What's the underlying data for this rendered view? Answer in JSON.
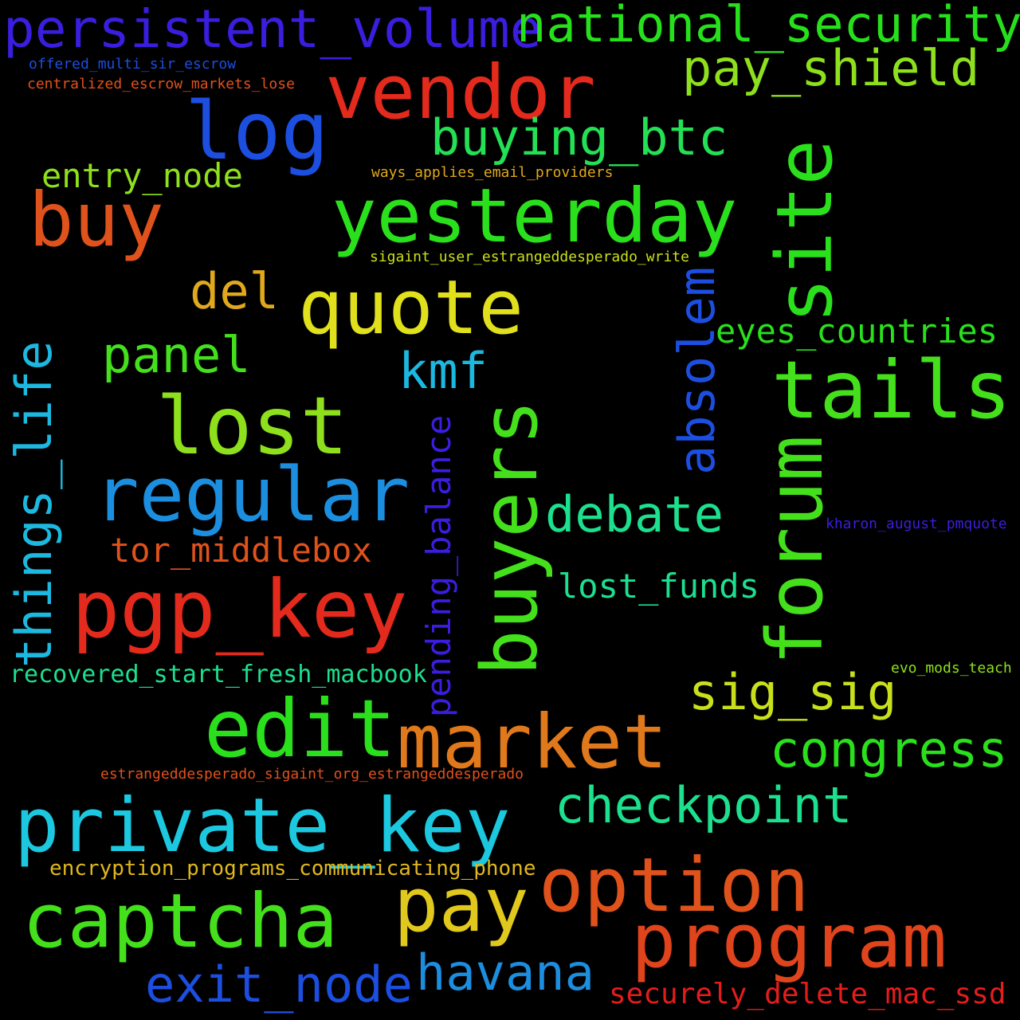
{
  "words": [
    {
      "id": "persistent_volume",
      "text": "persistent_volume",
      "color": "#3a1ee0"
    },
    {
      "id": "national_security",
      "text": "national_security",
      "color": "#27e01c"
    },
    {
      "id": "vendor",
      "text": "vendor",
      "color": "#e42a1c"
    },
    {
      "id": "pay_shield",
      "text": "pay_shield",
      "color": "#8ee01c"
    },
    {
      "id": "offered_multi_sir_escrow",
      "text": "offered_multi_sir_escrow",
      "color": "#1c4ee0"
    },
    {
      "id": "centralized_escrow_markets_lose",
      "text": "centralized_escrow_markets_lose",
      "color": "#e0521c"
    },
    {
      "id": "log",
      "text": "log",
      "color": "#1c4ee0"
    },
    {
      "id": "buying_btc",
      "text": "buying_btc",
      "color": "#24e055"
    },
    {
      "id": "entry_node",
      "text": "entry_node",
      "color": "#8ee01c"
    },
    {
      "id": "ways_applies_email_providers",
      "text": "ways_applies_email_providers",
      "color": "#e0a81c"
    },
    {
      "id": "site",
      "text": "site",
      "color": "#2ae01c"
    },
    {
      "id": "buy",
      "text": "buy",
      "color": "#e0521c"
    },
    {
      "id": "yesterday",
      "text": "yesterday",
      "color": "#2ae01c"
    },
    {
      "id": "sigaint_user_estrangeddesperado_write",
      "text": "sigaint_user_estrangeddesperado_write",
      "color": "#c8e01c"
    },
    {
      "id": "del",
      "text": "del",
      "color": "#e0a81c"
    },
    {
      "id": "quote",
      "text": "quote",
      "color": "#e0e01c"
    },
    {
      "id": "absolem",
      "text": "absolem",
      "color": "#1c4ee0"
    },
    {
      "id": "eyes_countries",
      "text": "eyes_countries",
      "color": "#2ae01c"
    },
    {
      "id": "panel",
      "text": "panel",
      "color": "#44e01c"
    },
    {
      "id": "things_life",
      "text": "things_life",
      "color": "#1cb8e0"
    },
    {
      "id": "kmf",
      "text": "kmf",
      "color": "#1cb8e0"
    },
    {
      "id": "tails",
      "text": "tails",
      "color": "#44e01c"
    },
    {
      "id": "lost",
      "text": "lost",
      "color": "#8ee01c"
    },
    {
      "id": "forum",
      "text": "forum",
      "color": "#44e01c"
    },
    {
      "id": "buyers",
      "text": "buyers",
      "color": "#44e01c"
    },
    {
      "id": "pending_balance",
      "text": "pending_balance",
      "color": "#3a1ee0"
    },
    {
      "id": "regular",
      "text": "regular",
      "color": "#1c8ee0"
    },
    {
      "id": "debate",
      "text": "debate",
      "color": "#1ce08e"
    },
    {
      "id": "kharon_august_pmquote",
      "text": "kharon_august_pmquote",
      "color": "#3a1ee0"
    },
    {
      "id": "tor_middlebox",
      "text": "tor_middlebox",
      "color": "#e0521c"
    },
    {
      "id": "lost_funds",
      "text": "lost_funds",
      "color": "#1ce08e"
    },
    {
      "id": "pgp_key",
      "text": "pgp_key",
      "color": "#e42a1c"
    },
    {
      "id": "recovered_start_fresh_macbook",
      "text": "recovered_start_fresh_macbook",
      "color": "#1ce08e"
    },
    {
      "id": "evo_mods_teach",
      "text": "evo_mods_teach",
      "color": "#8ee01c"
    },
    {
      "id": "sig_sig",
      "text": "sig_sig",
      "color": "#c8e01c"
    },
    {
      "id": "edit",
      "text": "edit",
      "color": "#2ae01c"
    },
    {
      "id": "market",
      "text": "market",
      "color": "#e0781c"
    },
    {
      "id": "congress",
      "text": "congress",
      "color": "#2ae01c"
    },
    {
      "id": "estrangeddesperado_sigaint_org_estrangeddesperado",
      "text": "estrangeddesperado_sigaint_org_estrangeddesperado",
      "color": "#e0521c"
    },
    {
      "id": "checkpoint",
      "text": "checkpoint",
      "color": "#1ce08e"
    },
    {
      "id": "private_key",
      "text": "private_key",
      "color": "#1cc8e0"
    },
    {
      "id": "encryption_programs_communicating_phone",
      "text": "encryption_programs_communicating_phone",
      "color": "#e0b81c"
    },
    {
      "id": "option",
      "text": "option",
      "color": "#e0521c"
    },
    {
      "id": "pay",
      "text": "pay",
      "color": "#e0c81c"
    },
    {
      "id": "captcha",
      "text": "captcha",
      "color": "#44e01c"
    },
    {
      "id": "program",
      "text": "program",
      "color": "#e0441c"
    },
    {
      "id": "exit_node",
      "text": "exit_node",
      "color": "#1c4ee0"
    },
    {
      "id": "havana",
      "text": "havana",
      "color": "#1c8ee0"
    },
    {
      "id": "securely_delete_mac_ssd",
      "text": "securely_delete_mac_ssd",
      "color": "#e41c1c"
    }
  ]
}
